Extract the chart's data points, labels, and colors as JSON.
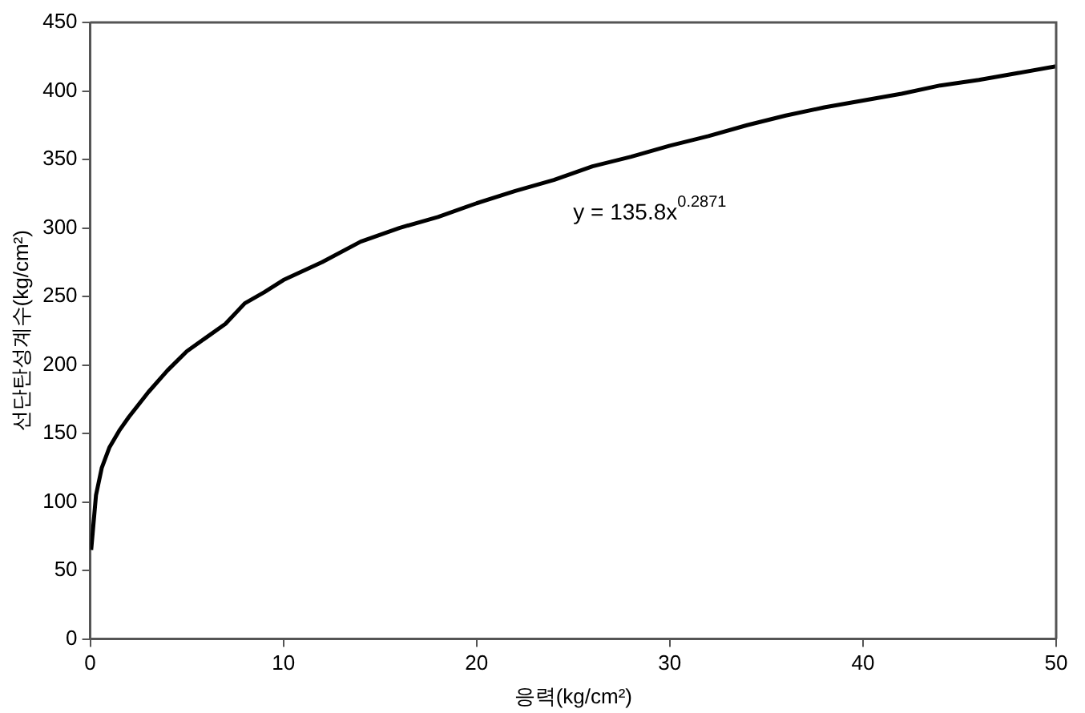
{
  "chart_data": {
    "type": "line",
    "xlabel": "응력(kg/cm²)",
    "ylabel": "선단탄성계수(kg/cm²)",
    "annotations": [
      "y = 135.8x$^{0.2871}$"
    ],
    "x": [
      0.05,
      0.3,
      0.6,
      1,
      1.5,
      2,
      3,
      4,
      5,
      6,
      7,
      8,
      9,
      10,
      12,
      14,
      16,
      18,
      20,
      22,
      24,
      26,
      28,
      30,
      32,
      34,
      36,
      38,
      40,
      42,
      44,
      46,
      48,
      50
    ],
    "series": [
      {
        "color": "#000000",
        "values": [
          65,
          105,
          125,
          140,
          152,
          162,
          180,
          196,
          210,
          220,
          230,
          245,
          253,
          262,
          275,
          290,
          300,
          308,
          318,
          327,
          335,
          345,
          352,
          360,
          367,
          375,
          382,
          388,
          393,
          398,
          404,
          408,
          413,
          418
        ]
      }
    ],
    "xlim": [
      0,
      50
    ],
    "xticks": [
      0,
      10,
      20,
      30,
      40,
      50
    ],
    "ylim": [
      0,
      450
    ],
    "yticks": [
      0,
      50,
      100,
      150,
      200,
      250,
      300,
      350,
      400,
      450
    ],
    "grid": false,
    "legend": false,
    "marker": "none",
    "line_style": "solid"
  }
}
